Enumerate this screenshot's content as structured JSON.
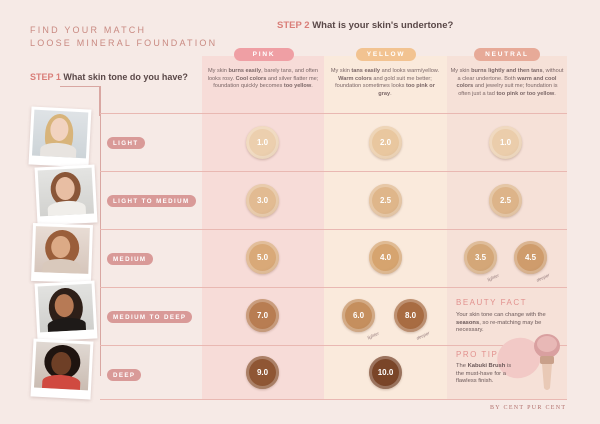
{
  "header": {
    "line1": "FIND YOUR MATCH",
    "line2": "LOOSE MINERAL FOUNDATION"
  },
  "step2": {
    "prefix": "STEP 2",
    "question": "What is your skin's undertone?"
  },
  "step1": {
    "prefix": "STEP 1",
    "question": "What skin tone do you have?"
  },
  "columns": [
    {
      "label": "PINK",
      "desc_parts": [
        "My skin ",
        "burns easily",
        ", barely tans, and often looks rosy. ",
        "Cool colors",
        " and silver flatter me; foundation quickly becomes ",
        "too yellow",
        "."
      ]
    },
    {
      "label": "YELLOW",
      "desc_parts": [
        "My skin ",
        "tans easily",
        " and looks warm/yellow. ",
        "Warm colors",
        " and gold suit me better; foundation sometimes looks ",
        "too pink or gray",
        "."
      ]
    },
    {
      "label": "NEUTRAL",
      "desc_parts": [
        "My skin ",
        "burns lightly and then tans",
        ", without a clear undertone. Both ",
        "warm and cool colors",
        " and jewelry suit me; foundation is often just a tad ",
        "too pink or too yellow",
        "."
      ]
    }
  ],
  "tones": [
    {
      "label": "LIGHT"
    },
    {
      "label": "LIGHT TO MEDIUM"
    },
    {
      "label": "MEDIUM"
    },
    {
      "label": "MEDIUM TO DEEP"
    },
    {
      "label": "DEEP"
    }
  ],
  "swatches": [
    {
      "value": "1.0",
      "color": "#eccfae"
    },
    {
      "value": "2.0",
      "color": "#e9c79f"
    },
    {
      "value": "1.0",
      "color": "#ebcdab"
    },
    {
      "value": "3.0",
      "color": "#e2bb92"
    },
    {
      "value": "2.5",
      "color": "#dfb68a"
    },
    {
      "value": "2.5",
      "color": "#ddb489"
    },
    {
      "value": "5.0",
      "color": "#d9a978"
    },
    {
      "value": "4.0",
      "color": "#d6a46f"
    },
    {
      "value": "3.5",
      "color": "#d4a778",
      "sub": "lighter"
    },
    {
      "value": "4.5",
      "color": "#cf9c6c",
      "sub": "deeper"
    },
    {
      "value": "7.0",
      "color": "#b87d52"
    },
    {
      "value": "6.0",
      "color": "#c58f5e",
      "sub": "lighter"
    },
    {
      "value": "8.0",
      "color": "#a86c42",
      "sub": "deeper"
    },
    {
      "value": "9.0",
      "color": "#8f5634"
    },
    {
      "value": "10.0",
      "color": "#7a4528"
    }
  ],
  "beauty_fact": {
    "title": "BEAUTY FACT",
    "parts": [
      "Your skin tone can change with the ",
      "seasons",
      ", so re-matching may be necessary."
    ]
  },
  "pro_tip": {
    "title": "PRO TIP",
    "parts": [
      "The ",
      "Kabuki Brush",
      " is the must-have for a flawless finish."
    ]
  },
  "brand": "BY CENT PUR CENT"
}
